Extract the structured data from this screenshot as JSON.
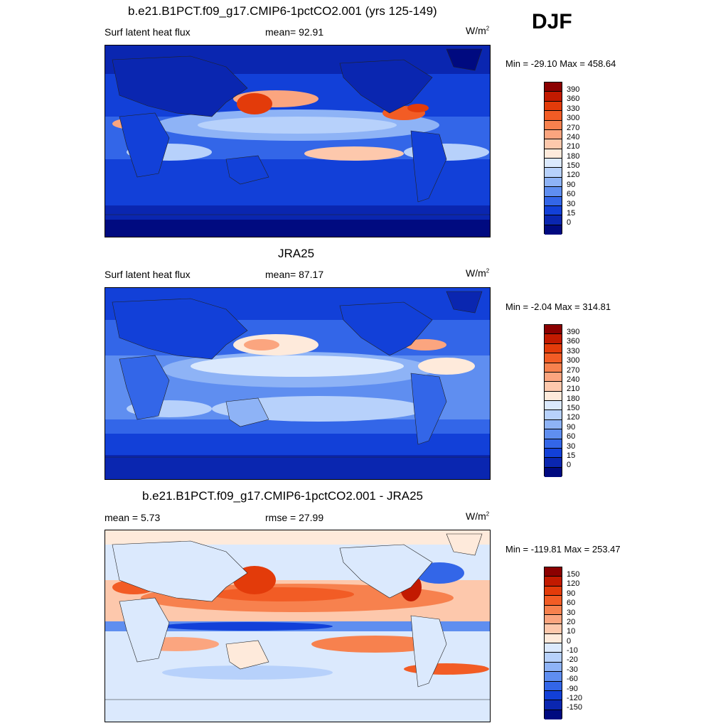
{
  "season": "DJF",
  "panels": [
    {
      "title": "b.e21.B1PCT.f09_g17.CMIP6-1pctCO2.001 (yrs 125-149)",
      "left_label": "Surf latent heat flux",
      "center_label": "mean=  92.91",
      "units_base": "W/m",
      "units_exp": "2",
      "minmax": "Min = -29.10 Max = 458.64",
      "colorbar_labels": [
        "390",
        "360",
        "330",
        "300",
        "270",
        "240",
        "210",
        "180",
        "150",
        "120",
        "90",
        "60",
        "30",
        "15",
        "0"
      ]
    },
    {
      "title": "JRA25",
      "left_label": "Surf latent heat flux",
      "center_label": "mean=  87.17",
      "units_base": "W/m",
      "units_exp": "2",
      "minmax": "Min =  -2.04 Max = 314.81",
      "colorbar_labels": [
        "390",
        "360",
        "330",
        "300",
        "270",
        "240",
        "210",
        "180",
        "150",
        "120",
        "90",
        "60",
        "30",
        "15",
        "0"
      ]
    },
    {
      "title": "b.e21.B1PCT.f09_g17.CMIP6-1pctCO2.001 - JRA25",
      "left_label": "mean =   5.73",
      "center_label": "rmse =  27.99",
      "units_base": "W/m",
      "units_exp": "2",
      "minmax": "Min = -119.81 Max = 253.47",
      "colorbar_labels": [
        "150",
        "120",
        "90",
        "60",
        "30",
        "20",
        "10",
        "0",
        "-10",
        "-20",
        "-30",
        "-60",
        "-90",
        "-120",
        "-150"
      ]
    }
  ],
  "colors": {
    "seq_scale": [
      "#8b0000",
      "#c21a00",
      "#e33b0a",
      "#f25c25",
      "#f7814e",
      "#fba57f",
      "#fdc8ac",
      "#feeadb",
      "#dbe9fd",
      "#b7d1fb",
      "#8eb3f6",
      "#5f8ef0",
      "#3366e8",
      "#1240d8",
      "#0a26b0",
      "#000a80"
    ],
    "div_scale": [
      "#8b0000",
      "#c21a00",
      "#e33b0a",
      "#f25c25",
      "#f7814e",
      "#fba57f",
      "#fdc8ac",
      "#feeadb",
      "#dbe9fd",
      "#b7d1fb",
      "#8eb3f6",
      "#5f8ef0",
      "#3366e8",
      "#1240d8",
      "#0a26b0",
      "#000a80"
    ],
    "land_outline": "#222222"
  },
  "chart_data": [
    {
      "type": "heatmap",
      "title": "b.e21.B1PCT.f09_g17.CMIP6-1pctCO2.001 (yrs 125-149)",
      "variable": "Surf latent heat flux",
      "units": "W/m2",
      "mean": 92.91,
      "min": -29.1,
      "max": 458.64,
      "levels": [
        0,
        15,
        30,
        60,
        90,
        120,
        150,
        180,
        210,
        240,
        270,
        300,
        330,
        360,
        390
      ]
    },
    {
      "type": "heatmap",
      "title": "JRA25",
      "variable": "Surf latent heat flux",
      "units": "W/m2",
      "mean": 87.17,
      "min": -2.04,
      "max": 314.81,
      "levels": [
        0,
        15,
        30,
        60,
        90,
        120,
        150,
        180,
        210,
        240,
        270,
        300,
        330,
        360,
        390
      ]
    },
    {
      "type": "heatmap",
      "title": "b.e21.B1PCT.f09_g17.CMIP6-1pctCO2.001 - JRA25",
      "units": "W/m2",
      "mean": 5.73,
      "rmse": 27.99,
      "min": -119.81,
      "max": 253.47,
      "levels": [
        -150,
        -120,
        -90,
        -60,
        -30,
        -20,
        -10,
        0,
        10,
        20,
        30,
        60,
        90,
        120,
        150
      ]
    }
  ]
}
